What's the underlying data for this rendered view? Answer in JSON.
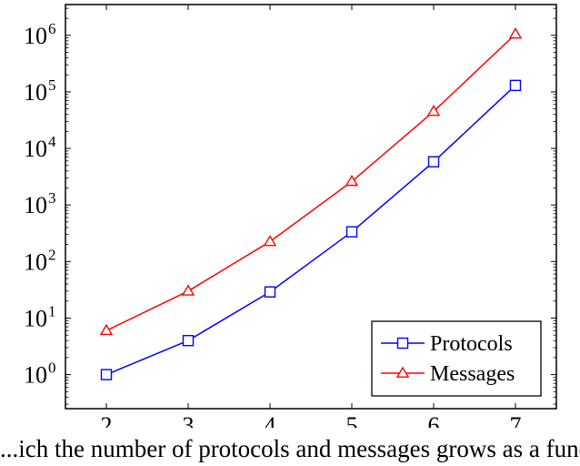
{
  "chart_data": {
    "type": "line",
    "title": "",
    "xlabel": "",
    "ylabel": "",
    "y_scale": "log",
    "xlim": [
      1.5,
      7.5
    ],
    "ylim": [
      0.25,
      3500000
    ],
    "x_ticks": [
      2,
      3,
      4,
      5,
      6,
      7
    ],
    "y_tick_exponents": [
      0,
      1,
      2,
      3,
      4,
      5,
      6
    ],
    "y_tick_base": "10",
    "grid": false,
    "legend_position": "bottom-right",
    "x": [
      2,
      3,
      4,
      5,
      6,
      7
    ],
    "series": [
      {
        "name": "Protocols",
        "values": [
          1,
          4,
          29,
          335,
          5800,
          130000
        ],
        "color": "#0000ff",
        "marker": "square"
      },
      {
        "name": "Messages",
        "values": [
          6,
          30,
          225,
          2600,
          45000,
          1050000
        ],
        "color": "#ff0000",
        "marker": "triangle"
      }
    ]
  },
  "caption": "...ich the number of protocols and messages grows as a function..."
}
